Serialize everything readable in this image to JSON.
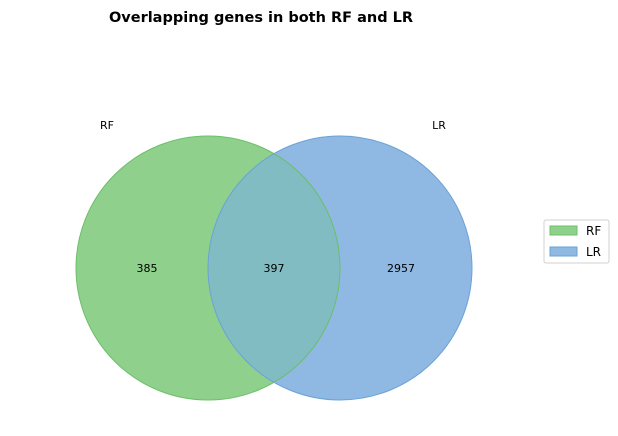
{
  "title": "Overlapping genes in both RF and LR",
  "sets": [
    {
      "name": "RF",
      "color": "#8fd18c",
      "edge": "#6cbf69"
    },
    {
      "name": "LR",
      "color": "#8fb8e2",
      "edge": "#6aa3d6"
    }
  ],
  "overlap_color": "#80bcc2",
  "counts": {
    "only_rf": "385",
    "both": "397",
    "only_lr": "2957"
  },
  "legend": {
    "items": [
      "RF",
      "LR"
    ],
    "placement": "right"
  }
}
